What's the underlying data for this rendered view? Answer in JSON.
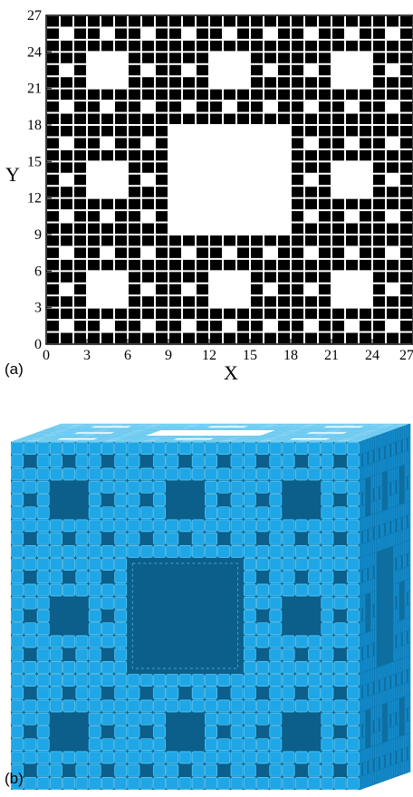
{
  "panel_a": {
    "label": "(a)",
    "x_title": "X",
    "y_title": "Y",
    "x_ticks": [
      "0",
      "3",
      "6",
      "9",
      "12",
      "15",
      "18",
      "21",
      "24",
      "27"
    ],
    "y_ticks": [
      "0",
      "3",
      "6",
      "9",
      "12",
      "15",
      "18",
      "21",
      "24",
      "27"
    ]
  },
  "panel_b": {
    "label": "(b)"
  },
  "colors": {
    "cell_fill": "#000000",
    "background": "#ffffff",
    "cube_top": "#a9e6ff",
    "cube_front": "#1fa6e6",
    "cube_side": "#148ccd",
    "cube_hole": "#0b5f8a"
  },
  "chart_data": {
    "type": "heatmap",
    "title": "",
    "xlabel": "X",
    "ylabel": "Y",
    "xlim": [
      0,
      27
    ],
    "ylim": [
      0,
      27
    ],
    "grid_size": 27,
    "pattern": "Sierpinski carpet level 3 (filled cells black, removed cells white)",
    "removed_blocks": [
      {
        "x": [
          9,
          18
        ],
        "y": [
          9,
          18
        ]
      },
      {
        "x": [
          3,
          6
        ],
        "y": [
          3,
          6
        ]
      },
      {
        "x": [
          12,
          15
        ],
        "y": [
          3,
          6
        ]
      },
      {
        "x": [
          21,
          24
        ],
        "y": [
          3,
          6
        ]
      },
      {
        "x": [
          3,
          6
        ],
        "y": [
          12,
          15
        ]
      },
      {
        "x": [
          21,
          24
        ],
        "y": [
          12,
          15
        ]
      },
      {
        "x": [
          3,
          6
        ],
        "y": [
          21,
          24
        ]
      },
      {
        "x": [
          12,
          15
        ],
        "y": [
          21,
          24
        ]
      },
      {
        "x": [
          21,
          24
        ],
        "y": [
          21,
          24
        ]
      }
    ]
  }
}
